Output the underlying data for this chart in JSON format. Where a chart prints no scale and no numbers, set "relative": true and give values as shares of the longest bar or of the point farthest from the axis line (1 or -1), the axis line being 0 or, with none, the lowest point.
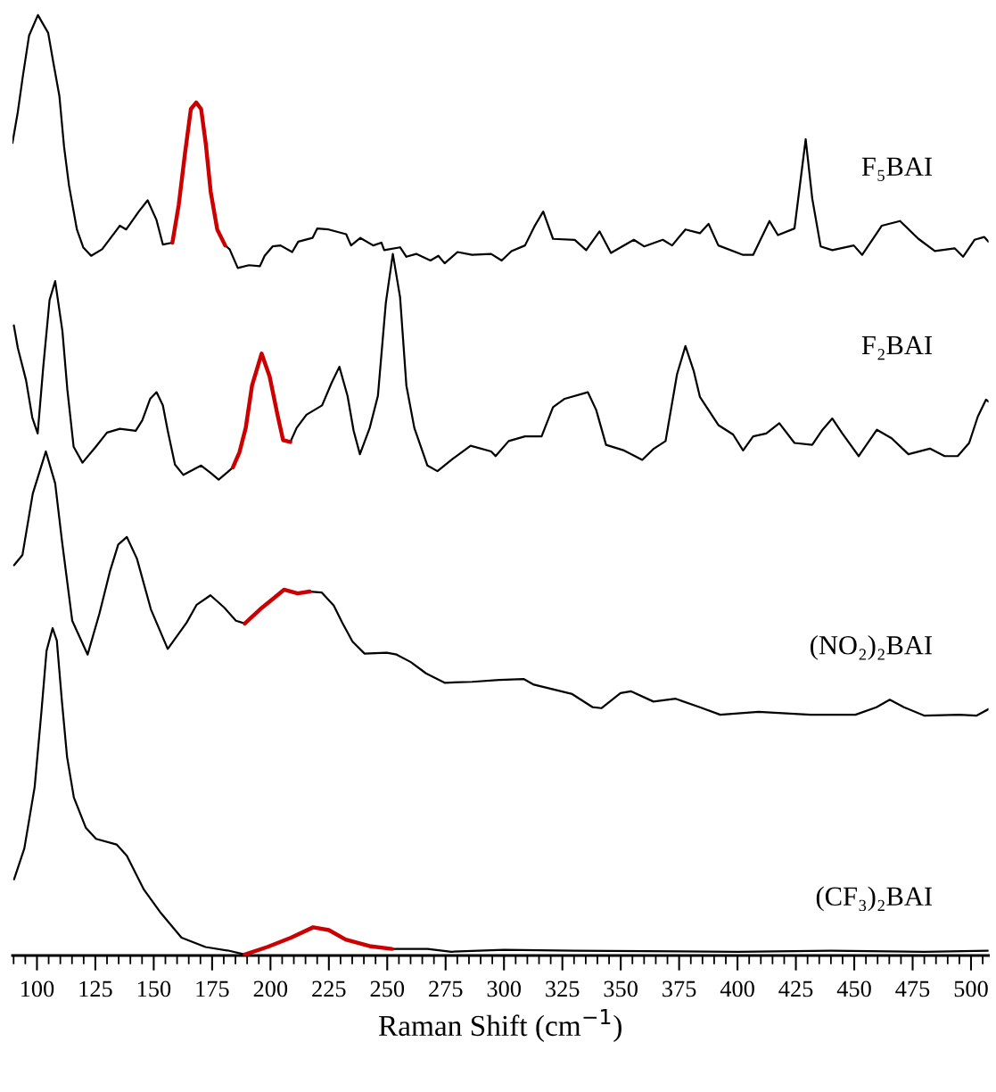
{
  "chart_data": {
    "type": "line",
    "relative": true,
    "tick_labels": "x",
    "xlabel": "Raman Shift (cm$^{−1}$)",
    "xlim": [
      89.5,
      507.5
    ],
    "xticks": [
      {
        "value": 90,
        "label": null
      },
      {
        "value": 95,
        "label": null
      },
      100,
      {
        "value": 105,
        "label": null
      },
      {
        "value": 110,
        "label": null
      },
      {
        "value": 115,
        "label": null
      },
      {
        "value": 120,
        "label": null
      },
      125,
      {
        "value": 130,
        "label": null
      },
      {
        "value": 135,
        "label": null
      },
      {
        "value": 140,
        "label": null
      },
      {
        "value": 145,
        "label": null
      },
      150,
      {
        "value": 155,
        "label": null
      },
      {
        "value": 160,
        "label": null
      },
      {
        "value": 165,
        "label": null
      },
      {
        "value": 170,
        "label": null
      },
      175,
      {
        "value": 180,
        "label": null
      },
      {
        "value": 185,
        "label": null
      },
      {
        "value": 190,
        "label": null
      },
      {
        "value": 195,
        "label": null
      },
      200,
      {
        "value": 205,
        "label": null
      },
      {
        "value": 210,
        "label": null
      },
      {
        "value": 215,
        "label": null
      },
      {
        "value": 220,
        "label": null
      },
      225,
      {
        "value": 230,
        "label": null
      },
      {
        "value": 235,
        "label": null
      },
      {
        "value": 240,
        "label": null
      },
      {
        "value": 245,
        "label": null
      },
      250,
      {
        "value": 255,
        "label": null
      },
      {
        "value": 260,
        "label": null
      },
      {
        "value": 265,
        "label": null
      },
      {
        "value": 270,
        "label": null
      },
      275,
      {
        "value": 280,
        "label": null
      },
      {
        "value": 285,
        "label": null
      },
      {
        "value": 290,
        "label": null
      },
      {
        "value": 295,
        "label": null
      },
      300,
      {
        "value": 305,
        "label": null
      },
      {
        "value": 310,
        "label": null
      },
      {
        "value": 315,
        "label": null
      },
      {
        "value": 320,
        "label": null
      },
      325,
      {
        "value": 330,
        "label": null
      },
      {
        "value": 335,
        "label": null
      },
      {
        "value": 340,
        "label": null
      },
      {
        "value": 345,
        "label": null
      },
      350,
      {
        "value": 355,
        "label": null
      },
      {
        "value": 360,
        "label": null
      },
      {
        "value": 365,
        "label": null
      },
      {
        "value": 370,
        "label": null
      },
      375,
      {
        "value": 380,
        "label": null
      },
      {
        "value": 385,
        "label": null
      },
      {
        "value": 390,
        "label": null
      },
      {
        "value": 395,
        "label": null
      },
      400,
      {
        "value": 405,
        "label": null
      },
      {
        "value": 410,
        "label": null
      },
      {
        "value": 415,
        "label": null
      },
      {
        "value": 420,
        "label": null
      },
      425,
      {
        "value": 430,
        "label": null
      },
      {
        "value": 435,
        "label": null
      },
      {
        "value": 440,
        "label": null
      },
      {
        "value": 445,
        "label": null
      },
      450,
      {
        "value": 455,
        "label": null
      },
      {
        "value": 460,
        "label": null
      },
      {
        "value": 465,
        "label": null
      },
      {
        "value": 470,
        "label": null
      },
      475,
      {
        "value": 480,
        "label": null
      },
      {
        "value": 485,
        "label": null
      },
      {
        "value": 490,
        "label": null
      },
      {
        "value": 495,
        "label": null
      },
      500,
      {
        "value": 505,
        "label": null
      }
    ],
    "series": [
      {
        "name": "F₅BAI",
        "color": "#000000",
        "x": [
          89.5,
          91.8,
          93.9,
          96.6,
          100.4,
          104.8,
          106.9,
          109.6,
          111.6,
          113.7,
          117.1,
          119.8,
          123.2,
          127.9,
          135.5,
          138.2,
          143.6,
          147.4,
          151.2,
          153.9,
          158,
          170,
          180.6,
          182.5,
          186,
          190.8,
          195.5,
          197.5,
          200.9,
          204.3,
          209.3,
          211.9,
          218,
          220,
          224.9,
          232.4,
          234.5,
          238.5,
          244,
          247.5,
          248.7,
          255.5,
          258.2,
          262.4,
          268.5,
          271.9,
          274.6,
          280.1,
          286.3,
          294.5,
          299,
          303.2,
          309,
          313.2,
          316.8,
          321,
          330.3,
          335.2,
          340.9,
          345.8,
          355.6,
          360,
          368,
          372,
          377.7,
          383.9,
          387.6,
          391.8,
          402.4,
          406.7,
          413.7,
          417.3,
          424.4,
          429.2,
          432,
          435.6,
          440.6,
          449.8,
          453.4,
          461.8,
          469.6,
          477.5,
          484.5,
          493,
          496.6,
          501.5,
          505.7,
          507.5
        ],
        "values": [
          0.864,
          0.897,
          0.934,
          0.978,
          1.0,
          0.981,
          0.951,
          0.914,
          0.86,
          0.819,
          0.772,
          0.753,
          0.744,
          0.751,
          0.776,
          0.772,
          0.791,
          0.803,
          0.782,
          0.756,
          0.758,
          null,
          0.755,
          0.751,
          0.731,
          0.734,
          0.733,
          0.744,
          0.754,
          0.755,
          0.748,
          0.759,
          0.763,
          0.773,
          0.772,
          0.767,
          0.755,
          0.763,
          0.755,
          0.758,
          0.75,
          0.753,
          0.743,
          0.746,
          0.739,
          0.744,
          0.736,
          0.748,
          0.745,
          0.746,
          0.739,
          0.749,
          0.755,
          0.776,
          0.791,
          0.762,
          0.761,
          0.75,
          0.77,
          0.747,
          0.761,
          0.754,
          0.761,
          0.755,
          0.772,
          0.768,
          0.778,
          0.755,
          0.745,
          0.745,
          0.781,
          0.766,
          0.773,
          0.868,
          0.805,
          0.754,
          0.75,
          0.755,
          0.745,
          0.776,
          0.781,
          0.762,
          0.749,
          0.752,
          0.743,
          0.761,
          0.764,
          0.759
        ]
      },
      {
        "color": "#cc0000",
        "x": [
          158,
          160.7,
          163.4,
          165.9,
          168.2,
          170.3,
          172.3,
          174.4,
          177.2,
          180.6
        ],
        "values": [
          0.758,
          0.798,
          0.853,
          0.9,
          0.907,
          0.9,
          0.863,
          0.812,
          0.772,
          0.755
        ]
      },
      {
        "name": "F₂BAI",
        "color": "#000000",
        "x": [
          90.1,
          91.8,
          95.3,
          98,
          100.3,
          102.7,
          105.4,
          107.8,
          110.9,
          113,
          115.7,
          119.5,
          125.2,
          130,
          135.5,
          142.3,
          145.1,
          148.5,
          151.2,
          153.9,
          156,
          159.1,
          162.7,
          170.3,
          174.4,
          177.8,
          181.2,
          183.9,
          196,
          208.5,
          211.2,
          215.4,
          222.1,
          226.2,
          229.5,
          233,
          235.6,
          238.3,
          242.5,
          246,
          249.4,
          252.4,
          255.5,
          258.2,
          261.6,
          267.2,
          271.5,
          278,
          285.7,
          294.5,
          296.4,
          302,
          309,
          316.1,
          321,
          326,
          335.9,
          339.5,
          343.7,
          351.4,
          359.2,
          364.2,
          369.2,
          374.1,
          377.7,
          381.2,
          383.9,
          391.8,
          398.1,
          402.4,
          406.7,
          412.3,
          417.9,
          424.4,
          432,
          436.4,
          440.6,
          444.9,
          451.9,
          459.7,
          466,
          473.2,
          482.4,
          488.7,
          494.3,
          499.2,
          502.9,
          506.4,
          507.5
        ],
        "values": [
          0.67,
          0.646,
          0.612,
          0.572,
          0.555,
          0.626,
          0.697,
          0.717,
          0.664,
          0.602,
          0.541,
          0.524,
          0.541,
          0.556,
          0.56,
          0.558,
          0.569,
          0.592,
          0.599,
          0.585,
          0.558,
          0.522,
          0.511,
          0.521,
          0.513,
          0.506,
          0.513,
          0.519,
          null,
          0.546,
          0.561,
          0.575,
          0.585,
          0.609,
          0.626,
          0.595,
          0.558,
          0.533,
          0.561,
          0.595,
          0.694,
          0.746,
          0.7,
          0.606,
          0.561,
          0.521,
          0.515,
          0.528,
          0.542,
          0.536,
          0.531,
          0.547,
          0.552,
          0.552,
          0.583,
          0.592,
          0.599,
          0.58,
          0.543,
          0.537,
          0.527,
          0.539,
          0.547,
          0.618,
          0.648,
          0.622,
          0.594,
          0.564,
          0.554,
          0.537,
          0.552,
          0.555,
          0.566,
          0.545,
          0.543,
          0.559,
          0.571,
          0.555,
          0.531,
          0.559,
          0.55,
          0.533,
          0.539,
          0.531,
          0.531,
          0.545,
          0.573,
          0.591,
          0.589
        ]
      },
      {
        "color": "#cc0000",
        "x": [
          183.9,
          186.7,
          189.4,
          192.1,
          196.2,
          199.6,
          203,
          205.4,
          208.5
        ],
        "values": [
          0.519,
          0.535,
          0.561,
          0.606,
          0.64,
          0.616,
          0.575,
          0.548,
          0.546
        ]
      },
      {
        "name": "(NO₂)₂BAI",
        "color": "#000000",
        "x": [
          90.2,
          93.8,
          98.2,
          103.8,
          107.8,
          110.7,
          115.1,
          121.7,
          126.8,
          131.2,
          134.8,
          138.5,
          142.8,
          148.8,
          156,
          164.1,
          168.4,
          174.3,
          180.2,
          185.2,
          189,
          203,
          216.8,
          221.9,
          227.1,
          230.7,
          235.1,
          240.3,
          249.8,
          254,
          260.1,
          266.6,
          274.6,
          286.3,
          297.9,
          308.4,
          312.8,
          329.2,
          338,
          341.7,
          349.9,
          354.3,
          364,
          373.5,
          383.9,
          392.6,
          409,
          431.2,
          450.5,
          459.5,
          465.2,
          471.3,
          480.1,
          495,
          502.3,
          507.5
        ],
        "values": [
          0.415,
          0.426,
          0.491,
          0.536,
          0.502,
          0.441,
          0.356,
          0.32,
          0.364,
          0.408,
          0.437,
          0.445,
          0.422,
          0.368,
          0.326,
          0.354,
          0.373,
          0.383,
          0.37,
          0.356,
          0.353,
          null,
          0.387,
          0.386,
          0.372,
          0.354,
          0.334,
          0.321,
          0.322,
          0.32,
          0.312,
          0.3,
          0.29,
          0.291,
          0.293,
          0.294,
          0.288,
          0.278,
          0.264,
          0.263,
          0.279,
          0.281,
          0.27,
          0.273,
          0.264,
          0.256,
          0.259,
          0.256,
          0.256,
          0.264,
          0.272,
          0.264,
          0.255,
          0.256,
          0.255,
          0.262
        ]
      },
      {
        "color": "#cc0000",
        "x": [
          189,
          195.5,
          201.4,
          205.8,
          211.6,
          216.8
        ],
        "values": [
          0.353,
          0.368,
          0.38,
          0.389,
          0.385,
          0.387
        ]
      },
      {
        "name": "(CF₃)₂BAI",
        "color": "#000000",
        "x": [
          90.2,
          94.6,
          99,
          101.9,
          104.1,
          106.7,
          108.5,
          110.7,
          112.9,
          115.8,
          120.9,
          125.3,
          134.1,
          138.5,
          145.8,
          153.1,
          161.9,
          172.2,
          182.4,
          189,
          220,
          252,
          267.3,
          277.5,
          300,
          330,
          400,
          440,
          480,
          507.5
        ],
        "values": [
          0.081,
          0.114,
          0.179,
          0.259,
          0.324,
          0.348,
          0.335,
          0.27,
          0.211,
          0.168,
          0.136,
          0.124,
          0.118,
          0.106,
          0.07,
          0.045,
          0.019,
          0.009,
          0.005,
          0.001,
          null,
          0.007,
          0.007,
          0.004,
          0.006,
          0.005,
          0.004,
          0.005,
          0.004,
          0.005
        ]
      },
      {
        "color": "#cc0000",
        "x": [
          189,
          198.6,
          208.8,
          218.3,
          225,
          232.2,
          242.4,
          252
        ],
        "values": [
          0.001,
          0.009,
          0.019,
          0.03,
          0.027,
          0.017,
          0.01,
          0.007
        ]
      }
    ]
  }
}
